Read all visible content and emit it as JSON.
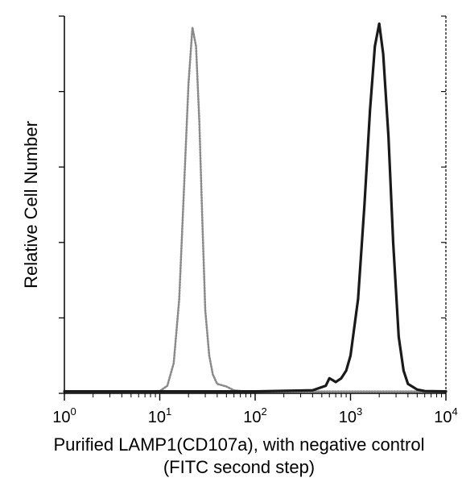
{
  "chart_data": {
    "type": "line",
    "title": "",
    "xlabel_lines": [
      "Purified LAMP1(CD107a), with negative control",
      "(FITC second step)"
    ],
    "ylabel": "Relative Cell Number",
    "x_scale": "log",
    "xlim": [
      1,
      10000
    ],
    "ylim": [
      0,
      100
    ],
    "x_tick_labels": [
      {
        "base": "10",
        "exp": "0",
        "value": 1
      },
      {
        "base": "10",
        "exp": "1",
        "value": 10
      },
      {
        "base": "10",
        "exp": "2",
        "value": 100
      },
      {
        "base": "10",
        "exp": "3",
        "value": 1000
      },
      {
        "base": "10",
        "exp": "4",
        "value": 10000
      }
    ],
    "y_ticks": [
      0,
      20,
      40,
      60,
      80,
      100
    ],
    "grid": false,
    "legend": "none",
    "series": [
      {
        "style": "dotted-light",
        "color": "#8a8a8a",
        "x": [
          1,
          5,
          10,
          12,
          14,
          16,
          18,
          20,
          22,
          24,
          26,
          28,
          30,
          33,
          36,
          40,
          50,
          60,
          80,
          100,
          10000
        ],
        "y": [
          0.5,
          0.5,
          0.6,
          2,
          8,
          25,
          55,
          82,
          97,
          92,
          72,
          45,
          22,
          10,
          5,
          2.5,
          1.8,
          0.8,
          0.5,
          0.5,
          0.5
        ]
      },
      {
        "style": "solid-dark",
        "color": "#1a1a1a",
        "x": [
          1,
          100,
          400,
          550,
          600,
          650,
          700,
          800,
          900,
          1000,
          1200,
          1400,
          1600,
          1800,
          2000,
          2200,
          2500,
          2800,
          3200,
          3600,
          4000,
          5000,
          6000,
          10000
        ],
        "y": [
          0.5,
          0.5,
          0.8,
          2,
          4,
          3.5,
          3,
          4,
          6,
          10,
          25,
          50,
          75,
          92,
          98,
          90,
          68,
          40,
          15,
          6,
          2.5,
          1,
          0.6,
          0.5
        ]
      }
    ]
  }
}
